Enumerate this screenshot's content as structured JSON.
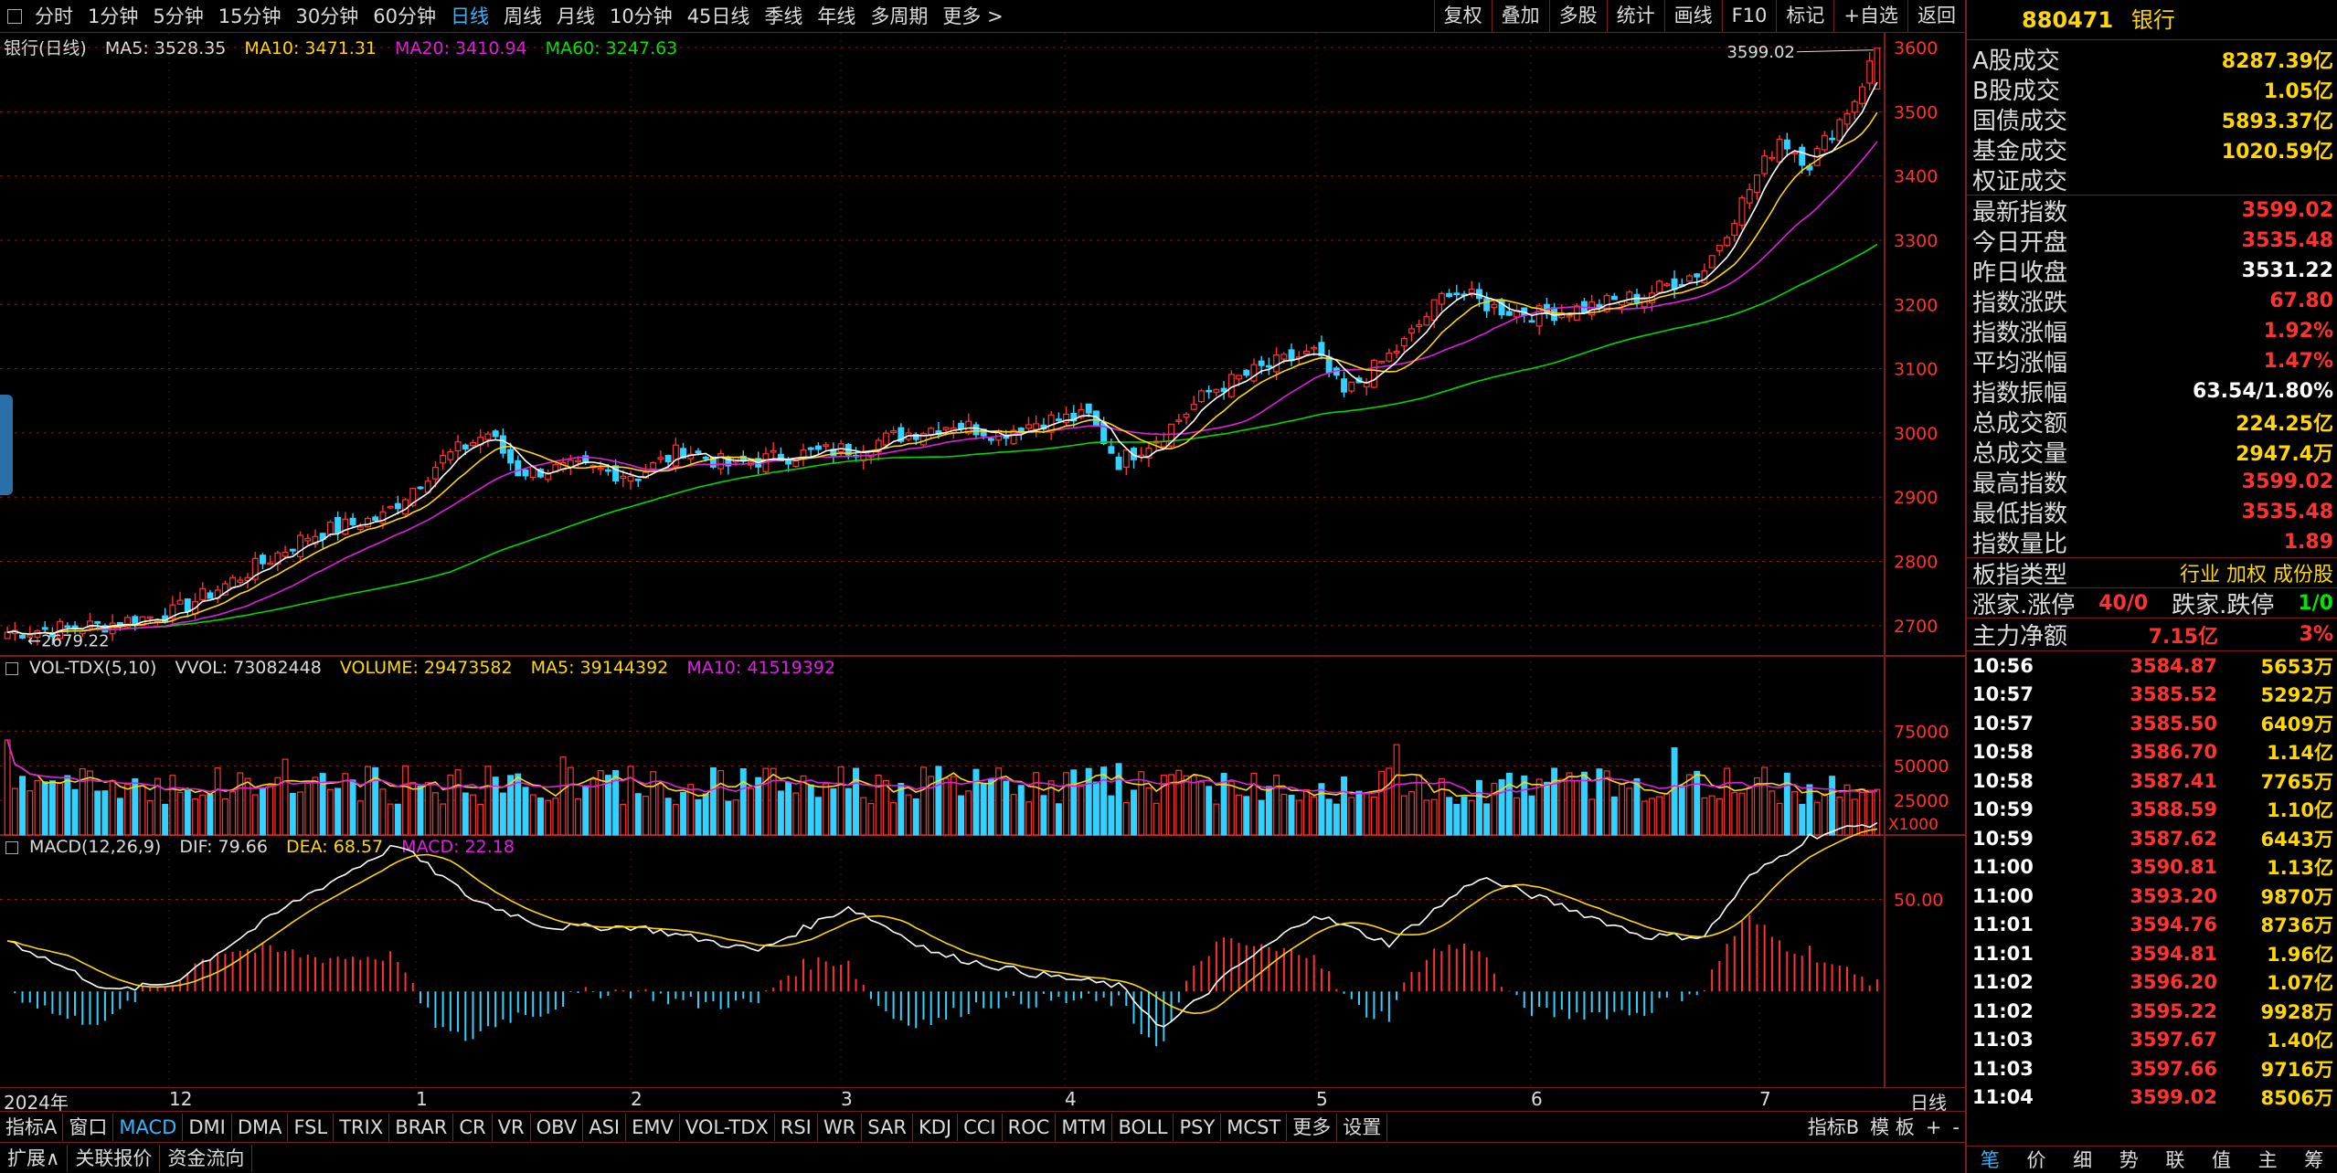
{
  "top_bar": {
    "periods": [
      "分时",
      "1分钟",
      "5分钟",
      "15分钟",
      "30分钟",
      "60分钟",
      "日线",
      "周线",
      "月线",
      "10分钟",
      "45日线",
      "季线",
      "年线",
      "多周期",
      "更多 >"
    ],
    "active_period": "日线",
    "tools": [
      "复权",
      "叠加",
      "多股",
      "统计",
      "画线",
      "F10",
      "标记",
      "+自选",
      "返回"
    ]
  },
  "main_legend": {
    "title": "银行(日线)",
    "ma5": "MA5: 3528.35",
    "ma10": "MA10: 3471.31",
    "ma20": "MA20: 3410.94",
    "ma60": "MA60: 3247.63"
  },
  "vol_legend": {
    "title": "VOL-TDX(5,10)",
    "vvol": "VVOL: 73082448",
    "volume": "VOLUME: 29473582",
    "ma5": "MA5: 39144392",
    "ma10": "MA10: 41519392"
  },
  "macd_legend": {
    "title": "MACD(12,26,9)",
    "dif": "DIF: 79.66",
    "dea": "DEA: 68.57",
    "macd": "MACD: 22.18"
  },
  "colors": {
    "up": "#ff3232",
    "down": "#33d1ff",
    "ma5": "#ffffff",
    "ma10": "#ffd800",
    "ma20": "#e01ee0",
    "ma60": "#00d800",
    "grid": "#7a1d1d"
  },
  "chart_data": {
    "type": "candlestick",
    "price_axis": {
      "ticks": [
        2700,
        2800,
        2900,
        3000,
        3100,
        3200,
        3300,
        3400,
        3500,
        3600
      ],
      "min": 2650,
      "max": 3620
    },
    "max_label": "3599.02",
    "min_label": "2679.22",
    "volume_axis": {
      "ticks": [
        "25000",
        "50000",
        "75000"
      ],
      "unit": "X1000",
      "max": 95000
    },
    "macd_axis": {
      "ticks": [
        "50.00"
      ],
      "min": -50,
      "max": 80
    },
    "x_axis": {
      "year_label": "2024年",
      "months": [
        "12",
        "1",
        "2",
        "3",
        "4",
        "5",
        "6",
        "7"
      ],
      "period": "日线"
    },
    "close_keypoints": [
      [
        0,
        2690
      ],
      [
        12,
        2700
      ],
      [
        22,
        2720
      ],
      [
        30,
        2770
      ],
      [
        40,
        2840
      ],
      [
        50,
        2870
      ],
      [
        58,
        2960
      ],
      [
        64,
        3000
      ],
      [
        68,
        2940
      ],
      [
        76,
        2945
      ],
      [
        84,
        2935
      ],
      [
        90,
        2975
      ],
      [
        96,
        2950
      ],
      [
        104,
        2965
      ],
      [
        112,
        2975
      ],
      [
        120,
        3000
      ],
      [
        126,
        3015
      ],
      [
        132,
        3000
      ],
      [
        138,
        3020
      ],
      [
        144,
        3025
      ],
      [
        148,
        2955
      ],
      [
        154,
        3000
      ],
      [
        160,
        3065
      ],
      [
        168,
        3105
      ],
      [
        174,
        3125
      ],
      [
        178,
        3060
      ],
      [
        186,
        3140
      ],
      [
        192,
        3225
      ],
      [
        198,
        3195
      ],
      [
        204,
        3185
      ],
      [
        210,
        3195
      ],
      [
        218,
        3215
      ],
      [
        226,
        3255
      ],
      [
        232,
        3380
      ],
      [
        236,
        3460
      ],
      [
        240,
        3420
      ],
      [
        246,
        3520
      ],
      [
        249,
        3599
      ]
    ],
    "macd_keypoints": [
      [
        0,
        28
      ],
      [
        14,
        0
      ],
      [
        22,
        5
      ],
      [
        38,
        48
      ],
      [
        52,
        80
      ],
      [
        62,
        50
      ],
      [
        72,
        35
      ],
      [
        84,
        35
      ],
      [
        100,
        22
      ],
      [
        112,
        46
      ],
      [
        124,
        20
      ],
      [
        136,
        10
      ],
      [
        148,
        3
      ],
      [
        154,
        -20
      ],
      [
        164,
        14
      ],
      [
        174,
        42
      ],
      [
        184,
        26
      ],
      [
        196,
        62
      ],
      [
        206,
        48
      ],
      [
        218,
        30
      ],
      [
        226,
        30
      ],
      [
        232,
        62
      ],
      [
        240,
        84
      ],
      [
        249,
        92
      ]
    ],
    "bar_count": 250
  },
  "right_panel": {
    "code": "880471",
    "name": "银行",
    "stats1": [
      {
        "k": "A股成交",
        "v": "8287.39亿",
        "c": "y"
      },
      {
        "k": "B股成交",
        "v": "1.05亿",
        "c": "y"
      },
      {
        "k": "国债成交",
        "v": "5893.37亿",
        "c": "y"
      },
      {
        "k": "基金成交",
        "v": "1020.59亿",
        "c": "y"
      },
      {
        "k": "权证成交",
        "v": "",
        "c": "y"
      }
    ],
    "stats2": [
      {
        "k": "最新指数",
        "v": "3599.02",
        "c": "r"
      },
      {
        "k": "今日开盘",
        "v": "3535.48",
        "c": "r"
      },
      {
        "k": "昨日收盘",
        "v": "3531.22",
        "c": "w"
      },
      {
        "k": "指数涨跌",
        "v": "67.80",
        "c": "r"
      },
      {
        "k": "指数涨幅",
        "v": "1.92%",
        "c": "r"
      },
      {
        "k": "平均涨幅",
        "v": "1.47%",
        "c": "r"
      },
      {
        "k": "指数振幅",
        "v": "63.54/1.80%",
        "c": "w"
      },
      {
        "k": "总成交额",
        "v": "224.25亿",
        "c": "y"
      },
      {
        "k": "总成交量",
        "v": "2947.4万",
        "c": "y"
      },
      {
        "k": "最高指数",
        "v": "3599.02",
        "c": "r"
      },
      {
        "k": "最低指数",
        "v": "3535.48",
        "c": "r"
      },
      {
        "k": "指数量比",
        "v": "1.89",
        "c": "r"
      }
    ],
    "plate_type": {
      "k": "板指类型",
      "v": "行业 加权 成份股"
    },
    "limits": {
      "k1": "涨家.涨停",
      "v1": "40/0",
      "k2": "跌家.跌停",
      "v2": "1/0"
    },
    "main_net": {
      "k": "主力净额",
      "v1": "7.15亿",
      "v2": "3%"
    },
    "ticks": [
      {
        "t": "10:56",
        "p": "3584.87",
        "v": "5653万"
      },
      {
        "t": "10:57",
        "p": "3585.52",
        "v": "5292万"
      },
      {
        "t": "10:57",
        "p": "3585.50",
        "v": "6409万"
      },
      {
        "t": "10:58",
        "p": "3586.70",
        "v": "1.14亿"
      },
      {
        "t": "10:58",
        "p": "3587.41",
        "v": "7765万"
      },
      {
        "t": "10:59",
        "p": "3588.59",
        "v": "1.10亿"
      },
      {
        "t": "10:59",
        "p": "3587.62",
        "v": "6443万"
      },
      {
        "t": "11:00",
        "p": "3590.81",
        "v": "1.13亿"
      },
      {
        "t": "11:00",
        "p": "3593.20",
        "v": "9870万"
      },
      {
        "t": "11:01",
        "p": "3594.76",
        "v": "8736万"
      },
      {
        "t": "11:01",
        "p": "3594.81",
        "v": "1.96亿"
      },
      {
        "t": "11:02",
        "p": "3596.20",
        "v": "1.07亿"
      },
      {
        "t": "11:02",
        "p": "3595.22",
        "v": "9928万"
      },
      {
        "t": "11:03",
        "p": "3597.67",
        "v": "1.40亿"
      },
      {
        "t": "11:03",
        "p": "3597.66",
        "v": "9716万"
      },
      {
        "t": "11:04",
        "p": "3599.02",
        "v": "8506万"
      }
    ],
    "tabs": [
      "笔",
      "价",
      "细",
      "势",
      "联",
      "值",
      "主",
      "筹"
    ],
    "active_tab": "笔"
  },
  "indicator_bar": {
    "items": [
      "指标A",
      "窗口",
      "MACD",
      "DMI",
      "DMA",
      "FSL",
      "TRIX",
      "BRAR",
      "CR",
      "VR",
      "OBV",
      "ASI",
      "EMV",
      "VOL-TDX",
      "RSI",
      "WR",
      "SAR",
      "KDJ",
      "CCI",
      "ROC",
      "MTM",
      "BOLL",
      "PSY",
      "MCST",
      "更多",
      "设置"
    ],
    "active": "MACD",
    "right": [
      "指标B",
      "模 板",
      "+",
      "-"
    ]
  },
  "bottom_bar": {
    "items": [
      "扩展∧",
      "关联报价",
      "资金流向"
    ]
  }
}
